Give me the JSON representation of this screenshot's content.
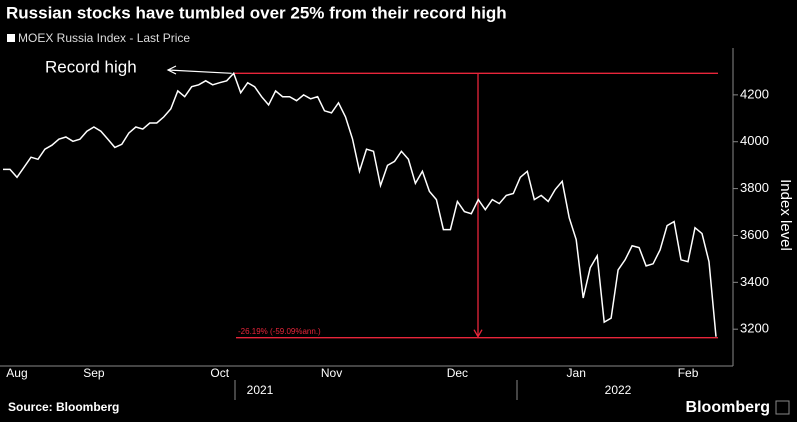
{
  "chart_data": {
    "type": "line",
    "title": "Russian stocks have tumbled over 25% from their record high",
    "series": [
      {
        "name": "MOEX Russia Index - Last Price",
        "color": "#ffffff",
        "values": [
          3882,
          3882,
          3848,
          3891,
          3934,
          3925,
          3968,
          3985,
          4011,
          4020,
          4002,
          4011,
          4045,
          4063,
          4045,
          4011,
          3976,
          3989,
          4037,
          4063,
          4054,
          4080,
          4080,
          4106,
          4140,
          4217,
          4192,
          4235,
          4243,
          4260,
          4243,
          4252,
          4260,
          4292,
          4209,
          4252,
          4235,
          4192,
          4157,
          4217,
          4192,
          4192,
          4175,
          4200,
          4183,
          4192,
          4132,
          4123,
          4166,
          4106,
          4012,
          3874,
          3968,
          3959,
          3813,
          3899,
          3916,
          3959,
          3925,
          3822,
          3874,
          3788,
          3753,
          3625,
          3625,
          3745,
          3702,
          3693,
          3753,
          3710,
          3753,
          3736,
          3771,
          3779,
          3848,
          3874,
          3753,
          3771,
          3745,
          3796,
          3831,
          3676,
          3582,
          3333,
          3462,
          3513,
          3230,
          3247,
          3453,
          3496,
          3556,
          3548,
          3470,
          3479,
          3539,
          3642,
          3659,
          3496,
          3488,
          3633,
          3608,
          3488,
          3168
        ]
      }
    ],
    "categories": [
      null,
      null,
      "Aug",
      null,
      null,
      null,
      null,
      null,
      null,
      null,
      null,
      null,
      null,
      "Sep",
      null,
      null,
      null,
      null,
      null,
      null,
      null,
      null,
      null,
      null,
      null,
      null,
      null,
      null,
      null,
      null,
      null,
      "Oct",
      null,
      null,
      null,
      null,
      null,
      null,
      null,
      null,
      null,
      null,
      null,
      null,
      null,
      null,
      null,
      "Nov",
      null,
      null,
      null,
      null,
      null,
      null,
      null,
      null,
      null,
      null,
      null,
      null,
      null,
      null,
      null,
      null,
      null,
      "Dec",
      null,
      null,
      null,
      null,
      null,
      null,
      null,
      null,
      null,
      null,
      null,
      null,
      null,
      null,
      null,
      null,
      "Jan",
      null,
      null,
      null,
      null,
      null,
      null,
      null,
      null,
      null,
      null,
      null,
      null,
      null,
      null,
      null,
      "Feb",
      null,
      null,
      null,
      null
    ],
    "years": [
      "2021",
      "2022"
    ],
    "ylim": [
      3060,
      4400
    ],
    "yticks": [
      3200,
      3400,
      3600,
      3800,
      4000,
      4200
    ],
    "y_label": "Index level",
    "annotations": {
      "record_high": "Record high",
      "change": "-26.19% (-59.09%ann.)"
    },
    "source": "Source: Bloomberg",
    "brand": "Bloomberg"
  }
}
